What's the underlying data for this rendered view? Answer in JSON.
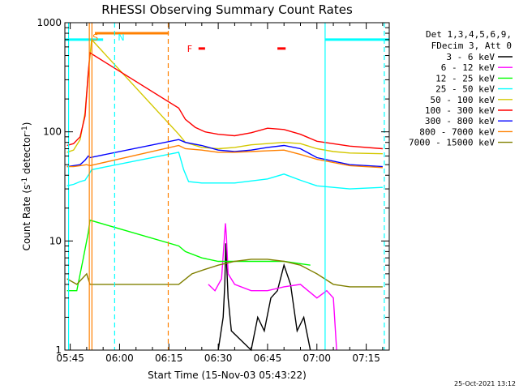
{
  "chart_data": {
    "type": "line",
    "title": "RHESSI Observing Summary Count Rates",
    "xlabel": "Start Time (15-Nov-03 05:43:22)",
    "ylabel": "Count Rate (s",
    "ylabel_sup1": "-1",
    "ylabel_mid": " detector",
    "ylabel_sup2": "-1",
    "ylabel_end": ")",
    "yscale": "log",
    "ylim": [
      1,
      1000
    ],
    "xlim": [
      "05:43:22",
      "07:22:00"
    ],
    "xlim_minutes": [
      343.37,
      442.0
    ],
    "x_ticks": [
      "05:45",
      "06:00",
      "06:15",
      "06:30",
      "06:45",
      "07:00",
      "07:15"
    ],
    "x_tick_minutes": [
      345,
      360,
      375,
      390,
      405,
      420,
      435
    ],
    "y_ticks": [
      "1",
      "10",
      "100",
      "1000"
    ],
    "y_tick_values": [
      1,
      10,
      100,
      1000
    ],
    "footer": "25-Oct-2021 13:12",
    "legend_header": [
      "Det 1,3,4,5,6,9,",
      "FDecim 3, Att 0"
    ],
    "legend_placement": "right",
    "grid": false,
    "series": [
      {
        "name": "3 - 6 keV",
        "color": "#000000",
        "x": [
          390.0,
          391.5,
          392.0,
          392.3,
          393.0,
          394.0,
          400.0,
          402.0,
          404.0,
          406.0,
          408.0,
          410.0,
          412.0,
          414.0,
          416.0,
          418.0
        ],
        "y": [
          1.0,
          2.0,
          4.0,
          9.5,
          3.0,
          1.5,
          1.0,
          2.0,
          1.5,
          3.0,
          3.5,
          6.0,
          4.0,
          1.5,
          2.0,
          1.0
        ]
      },
      {
        "name": "6 - 12 keV",
        "color": "#ff00ff",
        "x": [
          387.0,
          389.0,
          391.0,
          392.2,
          392.5,
          393.0,
          395.0,
          400.0,
          405.0,
          410.0,
          415.0,
          420.0,
          423.0,
          425.0,
          426.0
        ],
        "y": [
          4.0,
          3.5,
          4.5,
          14.5,
          11.0,
          5.0,
          4.0,
          3.5,
          3.5,
          3.8,
          4.0,
          3.0,
          3.5,
          3.0,
          1.0
        ]
      },
      {
        "name": "12 - 25 keV",
        "color": "#00ff00",
        "x": [
          344.0,
          347.0,
          349.0,
          350.5,
          351.0,
          378.0,
          380.0,
          385.0,
          390.0,
          400.0,
          410.0,
          418.0
        ],
        "y": [
          3.5,
          3.5,
          7.0,
          12.0,
          15.5,
          9.0,
          8.0,
          7.0,
          6.5,
          6.5,
          6.5,
          6.0
        ]
      },
      {
        "name": "25 - 50 keV",
        "color": "#00ffff",
        "x": [
          344.0,
          346.0,
          348.0,
          349.5,
          350.5,
          351.5,
          378.0,
          379.5,
          381.0,
          385.0,
          395.0,
          405.0,
          410.0,
          415.0,
          420.0,
          430.0,
          440.0
        ],
        "y": [
          32.0,
          33.0,
          35.0,
          36.0,
          40.0,
          45.0,
          65.0,
          45.0,
          35.0,
          34.0,
          34.0,
          37.0,
          41.0,
          36.0,
          32.0,
          30.0,
          31.0
        ]
      },
      {
        "name": "50 - 100 keV",
        "color": "#d4c800",
        "x": [
          344.0,
          346.0,
          348.0,
          349.5,
          350.5,
          351.5,
          378.0,
          380.0,
          385.0,
          390.0,
          395.0,
          400.0,
          405.0,
          410.0,
          415.0,
          420.0,
          425.0,
          430.0,
          440.0
        ],
        "y": [
          65.0,
          68.0,
          85.0,
          150.0,
          350.0,
          700.0,
          95.0,
          80.0,
          72.0,
          70.0,
          72.0,
          76.0,
          78.0,
          80.0,
          78.0,
          70.0,
          66.0,
          64.0,
          63.0
        ]
      },
      {
        "name": "100 - 300 keV",
        "color": "#ff0000",
        "x": [
          344.0,
          346.0,
          348.0,
          349.5,
          350.5,
          351.0,
          378.0,
          380.0,
          383.0,
          386.0,
          390.0,
          395.0,
          400.0,
          405.0,
          410.0,
          415.0,
          420.0,
          430.0,
          440.0
        ],
        "y": [
          75.0,
          78.0,
          90.0,
          140.0,
          350.0,
          530.0,
          165.0,
          130.0,
          110.0,
          100.0,
          95.0,
          92.0,
          98.0,
          108.0,
          105.0,
          95.0,
          82.0,
          74.0,
          70.0
        ]
      },
      {
        "name": "300 - 800 keV",
        "color": "#0000ff",
        "x": [
          344.0,
          346.0,
          348.0,
          349.5,
          350.5,
          351.0,
          378.0,
          380.0,
          385.0,
          390.0,
          395.0,
          400.0,
          405.0,
          410.0,
          415.0,
          420.0,
          430.0,
          440.0
        ],
        "y": [
          48.0,
          49.0,
          50.0,
          55.0,
          60.0,
          58.0,
          85.0,
          80.0,
          75.0,
          68.0,
          66.0,
          68.0,
          72.0,
          75.0,
          70.0,
          58.0,
          50.0,
          48.0
        ]
      },
      {
        "name": "800 - 7000 keV",
        "color": "#ff8000",
        "x": [
          344.0,
          346.0,
          348.0,
          350.0,
          351.0,
          378.0,
          380.0,
          385.0,
          390.0,
          395.0,
          400.0,
          405.0,
          410.0,
          415.0,
          420.0,
          430.0,
          440.0
        ],
        "y": [
          48.0,
          48.0,
          49.0,
          50.0,
          49.0,
          75.0,
          70.0,
          68.0,
          65.0,
          65.0,
          66.0,
          67.0,
          68.0,
          62.0,
          56.0,
          49.0,
          47.0
        ]
      },
      {
        "name": "7000 - 15000 keV",
        "color": "#808000",
        "x": [
          344.0,
          347.0,
          350.0,
          351.0,
          378.0,
          382.0,
          386.0,
          390.0,
          395.0,
          400.0,
          405.0,
          410.0,
          415.0,
          420.0,
          425.0,
          430.0,
          435.0,
          440.0
        ],
        "y": [
          4.5,
          4.0,
          5.0,
          4.0,
          4.0,
          5.0,
          5.5,
          6.0,
          6.5,
          6.8,
          6.8,
          6.5,
          6.0,
          5.0,
          4.0,
          3.8,
          3.8,
          3.8
        ]
      }
    ],
    "vertical_markers": [
      {
        "label": "",
        "color": "#00ffff",
        "style": "solid",
        "x_minutes": 344.5
      },
      {
        "label": "N",
        "color": "#00ffff",
        "style": "dashed",
        "x_minutes": 358.5
      },
      {
        "label": "",
        "color": "#00ffff",
        "style": "solid",
        "x_minutes": 422.5
      },
      {
        "label": "",
        "color": "#00ffff",
        "style": "dashed",
        "x_minutes": 440.5
      },
      {
        "label": "S",
        "color": "#ff8000",
        "style": "solid",
        "x_minutes": 350.8
      },
      {
        "label": "",
        "color": "#ff8000",
        "style": "solid",
        "x_minutes": 351.6
      },
      {
        "label": "",
        "color": "#ff8000",
        "style": "dashed",
        "x_minutes": 374.8
      }
    ],
    "bars": [
      {
        "label": "",
        "color": "#00ffff",
        "x_start_minutes": 343.4,
        "x_end_minutes": 355.0,
        "y": 700
      },
      {
        "label": "",
        "color": "#00ffff",
        "x_start_minutes": 422.5,
        "x_end_minutes": 442.0,
        "y": 700
      },
      {
        "label": "",
        "color": "#ff8000",
        "x_start_minutes": 352.5,
        "x_end_minutes": 375.0,
        "y": 800
      },
      {
        "label": "F",
        "color": "#ff0000",
        "x_start_minutes": 384.0,
        "x_end_minutes": 386.0,
        "y": 580
      },
      {
        "label": "",
        "color": "#ff0000",
        "x_start_minutes": 408.0,
        "x_end_minutes": 410.5,
        "y": 580
      }
    ]
  }
}
